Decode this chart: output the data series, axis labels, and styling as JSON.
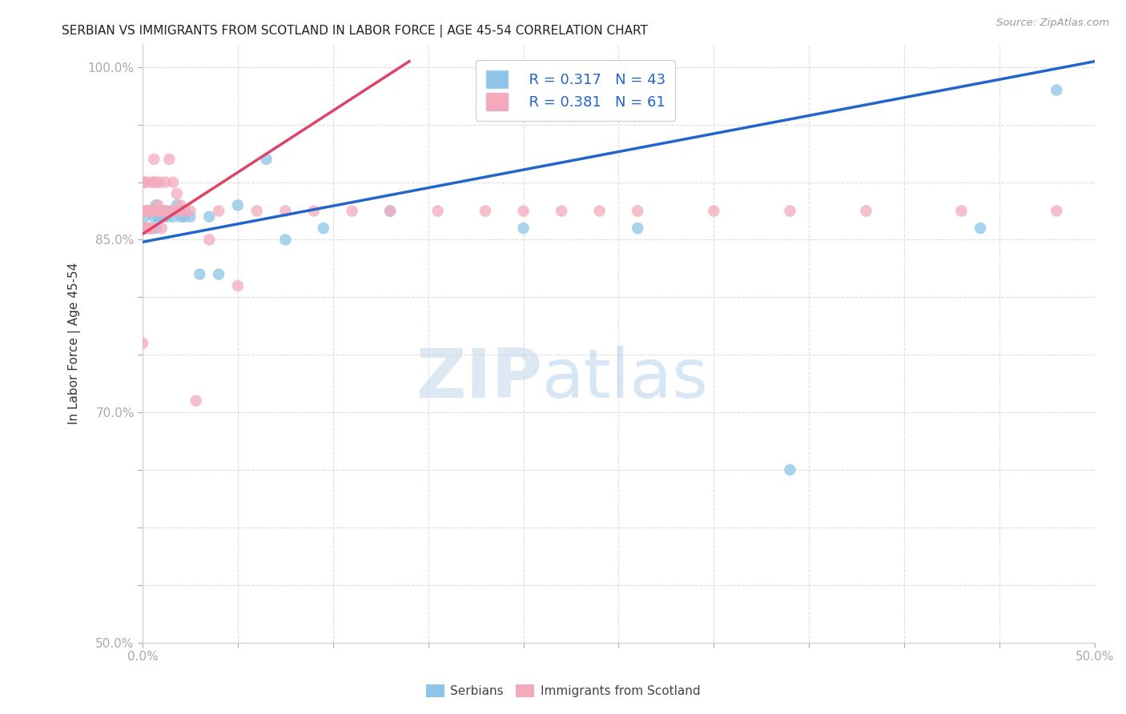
{
  "title": "SERBIAN VS IMMIGRANTS FROM SCOTLAND IN LABOR FORCE | AGE 45-54 CORRELATION CHART",
  "source": "Source: ZipAtlas.com",
  "ylabel": "In Labor Force | Age 45-54",
  "xmin": 0.0,
  "xmax": 0.5,
  "ymin": 0.5,
  "ymax": 1.02,
  "xticks": [
    0.0,
    0.05,
    0.1,
    0.15,
    0.2,
    0.25,
    0.3,
    0.35,
    0.4,
    0.45,
    0.5
  ],
  "yticks": [
    0.5,
    0.55,
    0.6,
    0.65,
    0.7,
    0.75,
    0.8,
    0.85,
    0.9,
    0.95,
    1.0
  ],
  "ytick_labels": [
    "50.0%",
    "",
    "",
    "",
    "70.0%",
    "",
    "",
    "85.0%",
    "",
    "",
    "100.0%"
  ],
  "xtick_labels": [
    "0.0%",
    "",
    "",
    "",
    "",
    "",
    "",
    "",
    "",
    "",
    "50.0%"
  ],
  "legend_r1": "R = 0.317",
  "legend_n1": "N = 43",
  "legend_r2": "R = 0.381",
  "legend_n2": "N = 61",
  "blue_color": "#8DC4E8",
  "pink_color": "#F4AABB",
  "blue_line_color": "#2266CC",
  "pink_line_color": "#DD4466",
  "watermark_zip": "ZIP",
  "watermark_atlas": "atlas",
  "title_fontsize": 11,
  "axis_tick_color": "#4499FF",
  "ylabel_color": "#333333",
  "serbians_x": [
    0.0,
    0.0,
    0.001,
    0.001,
    0.002,
    0.002,
    0.003,
    0.003,
    0.003,
    0.004,
    0.004,
    0.005,
    0.005,
    0.006,
    0.006,
    0.007,
    0.007,
    0.008,
    0.009,
    0.01,
    0.01,
    0.011,
    0.012,
    0.013,
    0.015,
    0.016,
    0.018,
    0.02,
    0.022,
    0.025,
    0.03,
    0.035,
    0.04,
    0.05,
    0.065,
    0.075,
    0.095,
    0.13,
    0.2,
    0.26,
    0.34,
    0.44,
    0.48
  ],
  "serbians_y": [
    0.86,
    0.86,
    0.86,
    0.87,
    0.86,
    0.875,
    0.86,
    0.86,
    0.875,
    0.86,
    0.875,
    0.86,
    0.875,
    0.87,
    0.875,
    0.88,
    0.86,
    0.87,
    0.87,
    0.87,
    0.875,
    0.87,
    0.875,
    0.87,
    0.875,
    0.87,
    0.88,
    0.87,
    0.87,
    0.87,
    0.82,
    0.87,
    0.82,
    0.88,
    0.92,
    0.85,
    0.86,
    0.875,
    0.86,
    0.86,
    0.65,
    0.86,
    0.98
  ],
  "scotland_x": [
    0.0,
    0.0,
    0.0,
    0.0,
    0.0,
    0.001,
    0.001,
    0.001,
    0.002,
    0.002,
    0.002,
    0.003,
    0.003,
    0.004,
    0.004,
    0.005,
    0.005,
    0.005,
    0.006,
    0.006,
    0.006,
    0.007,
    0.007,
    0.008,
    0.008,
    0.009,
    0.009,
    0.01,
    0.01,
    0.011,
    0.012,
    0.013,
    0.014,
    0.015,
    0.016,
    0.017,
    0.018,
    0.019,
    0.02,
    0.022,
    0.025,
    0.028,
    0.035,
    0.04,
    0.05,
    0.06,
    0.075,
    0.09,
    0.11,
    0.13,
    0.155,
    0.18,
    0.2,
    0.22,
    0.24,
    0.26,
    0.3,
    0.34,
    0.38,
    0.43,
    0.48
  ],
  "scotland_y": [
    0.86,
    0.86,
    0.875,
    0.9,
    0.76,
    0.86,
    0.875,
    0.9,
    0.86,
    0.875,
    0.9,
    0.86,
    0.875,
    0.86,
    0.875,
    0.875,
    0.86,
    0.9,
    0.875,
    0.9,
    0.92,
    0.875,
    0.9,
    0.88,
    0.875,
    0.875,
    0.9,
    0.86,
    0.875,
    0.875,
    0.9,
    0.875,
    0.92,
    0.875,
    0.9,
    0.875,
    0.89,
    0.875,
    0.88,
    0.875,
    0.875,
    0.71,
    0.85,
    0.875,
    0.81,
    0.875,
    0.875,
    0.875,
    0.875,
    0.875,
    0.875,
    0.875,
    0.875,
    0.875,
    0.875,
    0.875,
    0.875,
    0.875,
    0.875,
    0.875,
    0.875
  ],
  "blue_line_x0": 0.0,
  "blue_line_y0": 0.848,
  "blue_line_x1": 0.5,
  "blue_line_y1": 1.005,
  "pink_line_x0": 0.0,
  "pink_line_y0": 0.855,
  "pink_line_x1": 0.14,
  "pink_line_y1": 1.005
}
